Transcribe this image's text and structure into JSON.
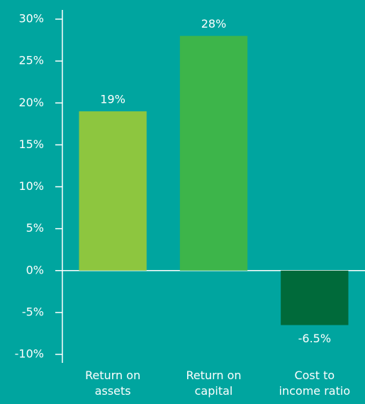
{
  "chart_data": {
    "type": "bar",
    "categories": [
      "Return on assets",
      "Return on capital",
      "Cost to income ratio"
    ],
    "values": [
      19,
      28,
      -6.5
    ],
    "value_labels": [
      "19%",
      "28%",
      "-6.5%"
    ],
    "colors": [
      "#8dc63f",
      "#3db54a",
      "#006a3a"
    ],
    "ylim": [
      -10,
      30
    ],
    "yticks": [
      {
        "value": -10,
        "label": "-10%"
      },
      {
        "value": -5,
        "label": "-5%"
      },
      {
        "value": 0,
        "label": "0%"
      },
      {
        "value": 5,
        "label": "5%"
      },
      {
        "value": 10,
        "label": "10%"
      },
      {
        "value": 15,
        "label": "15%"
      },
      {
        "value": 20,
        "label": "20%"
      },
      {
        "value": 25,
        "label": "25%"
      },
      {
        "value": 30,
        "label": "30%"
      }
    ],
    "grid": false
  }
}
